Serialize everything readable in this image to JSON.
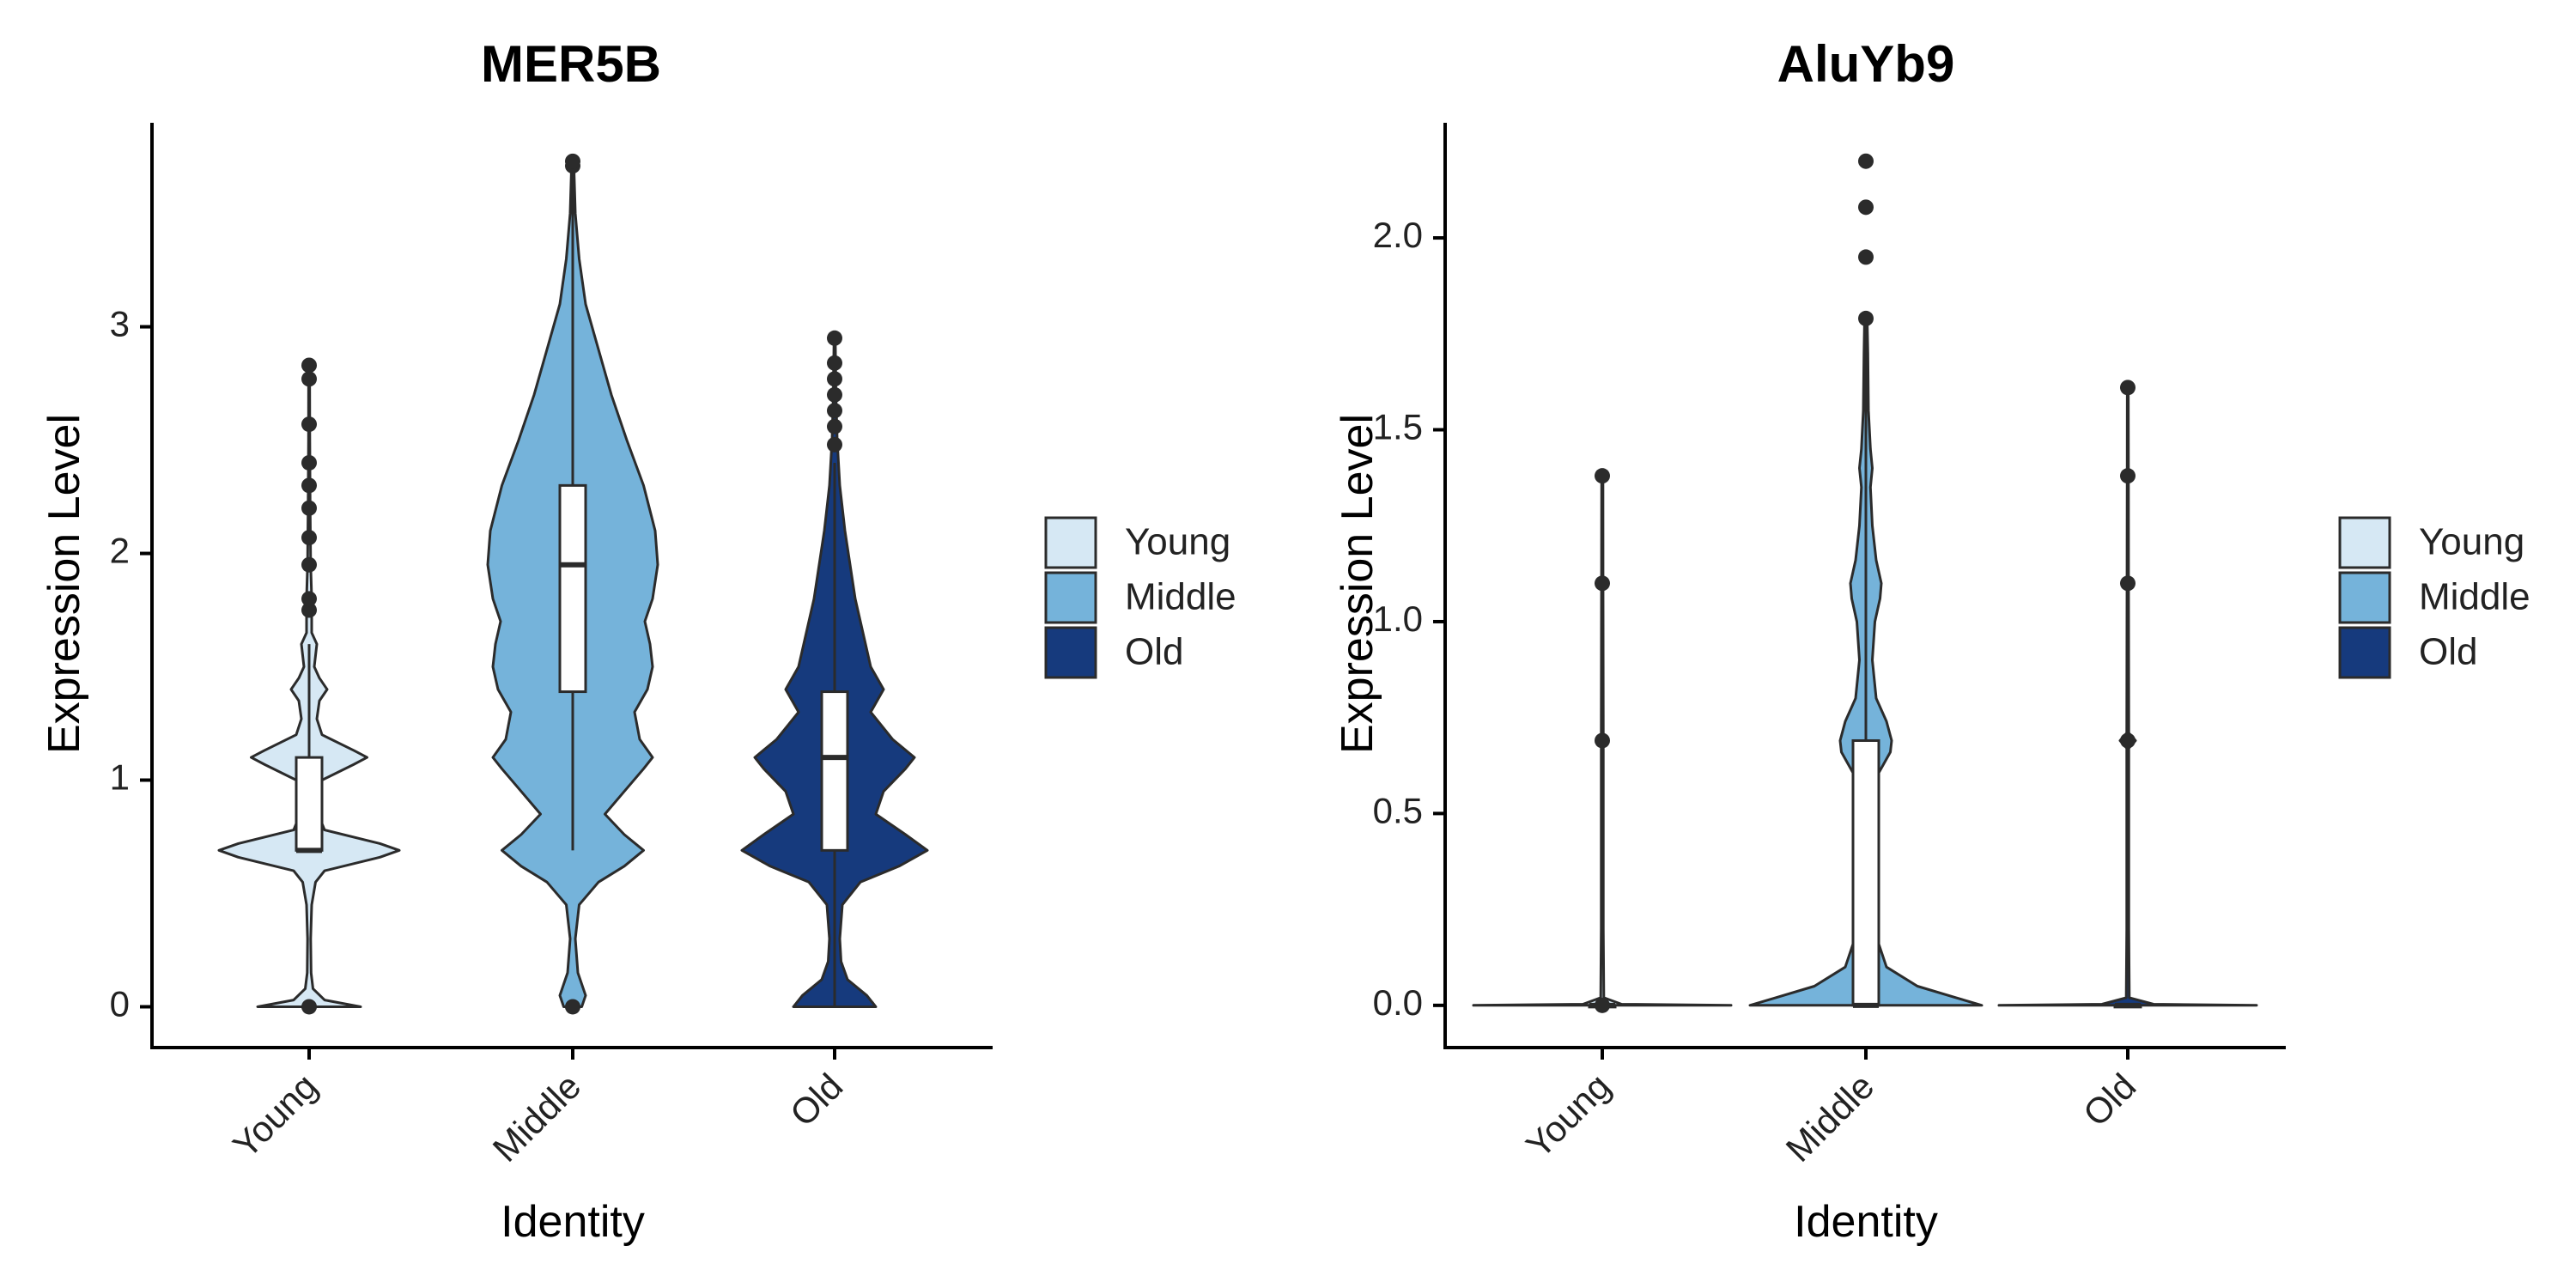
{
  "colors": {
    "Young": "#d6e8f4",
    "Middle": "#75b3da",
    "Old": "#163a7d",
    "outline": "#2b2b2b",
    "box_fill": "#ffffff",
    "axis": "#000000"
  },
  "chart_data": [
    {
      "type": "violin",
      "title": "MER5B",
      "xlabel": "Identity",
      "ylabel": "Expression Level",
      "categories": [
        "Young",
        "Middle",
        "Old"
      ],
      "ylim": [
        -0.18,
        3.9
      ],
      "yticks": [
        0,
        1,
        2,
        3
      ],
      "ytick_labels": [
        "0",
        "1",
        "2",
        "3"
      ],
      "grid": false,
      "legend": {
        "placement": "right",
        "entries": [
          "Young",
          "Middle",
          "Old"
        ]
      },
      "groups": [
        {
          "category": "Young",
          "density": [
            [
              0,
              0.4
            ],
            [
              0.03,
              0.12
            ],
            [
              0.08,
              0.03
            ],
            [
              0.15,
              0.015
            ],
            [
              0.3,
              0.012
            ],
            [
              0.45,
              0.02
            ],
            [
              0.55,
              0.05
            ],
            [
              0.6,
              0.12
            ],
            [
              0.66,
              0.55
            ],
            [
              0.69,
              0.7
            ],
            [
              0.72,
              0.55
            ],
            [
              0.78,
              0.12
            ],
            [
              0.85,
              0.07
            ],
            [
              0.92,
              0.06
            ],
            [
              1.0,
              0.1
            ],
            [
              1.07,
              0.35
            ],
            [
              1.1,
              0.45
            ],
            [
              1.13,
              0.35
            ],
            [
              1.2,
              0.1
            ],
            [
              1.27,
              0.06
            ],
            [
              1.35,
              0.08
            ],
            [
              1.4,
              0.14
            ],
            [
              1.45,
              0.08
            ],
            [
              1.5,
              0.04
            ],
            [
              1.6,
              0.06
            ],
            [
              1.65,
              0.02
            ],
            [
              1.8,
              0.02
            ],
            [
              1.95,
              0.012
            ],
            [
              2.2,
              0.008
            ],
            [
              2.5,
              0.005
            ],
            [
              2.83,
              0.004
            ]
          ],
          "box": {
            "q1": 0.69,
            "median": 0.69,
            "q3": 1.1,
            "whisker_low": 0.69,
            "whisker_high": 1.6
          },
          "outliers": [
            0,
            1.75,
            1.8,
            1.95,
            2.07,
            2.2,
            2.3,
            2.4,
            2.57,
            2.77,
            2.83
          ]
        },
        {
          "category": "Middle",
          "density": [
            [
              0,
              0.07
            ],
            [
              0.05,
              0.1
            ],
            [
              0.15,
              0.04
            ],
            [
              0.3,
              0.02
            ],
            [
              0.45,
              0.05
            ],
            [
              0.55,
              0.2
            ],
            [
              0.62,
              0.4
            ],
            [
              0.69,
              0.55
            ],
            [
              0.76,
              0.4
            ],
            [
              0.85,
              0.25
            ],
            [
              0.95,
              0.4
            ],
            [
              1.05,
              0.55
            ],
            [
              1.1,
              0.62
            ],
            [
              1.18,
              0.52
            ],
            [
              1.3,
              0.48
            ],
            [
              1.4,
              0.58
            ],
            [
              1.5,
              0.62
            ],
            [
              1.6,
              0.6
            ],
            [
              1.7,
              0.56
            ],
            [
              1.8,
              0.62
            ],
            [
              1.95,
              0.66
            ],
            [
              2.1,
              0.64
            ],
            [
              2.3,
              0.55
            ],
            [
              2.5,
              0.42
            ],
            [
              2.7,
              0.3
            ],
            [
              2.9,
              0.2
            ],
            [
              3.1,
              0.1
            ],
            [
              3.3,
              0.05
            ],
            [
              3.5,
              0.02
            ],
            [
              3.73,
              0.008
            ]
          ],
          "box": {
            "q1": 1.39,
            "median": 1.95,
            "q3": 2.3,
            "whisker_low": 0.69,
            "whisker_high": 3.73
          },
          "outliers": [
            0,
            3.71,
            3.73
          ]
        },
        {
          "category": "Old",
          "density": [
            [
              0,
              0.32
            ],
            [
              0.05,
              0.25
            ],
            [
              0.12,
              0.1
            ],
            [
              0.2,
              0.05
            ],
            [
              0.3,
              0.04
            ],
            [
              0.45,
              0.06
            ],
            [
              0.55,
              0.2
            ],
            [
              0.62,
              0.5
            ],
            [
              0.69,
              0.72
            ],
            [
              0.76,
              0.55
            ],
            [
              0.85,
              0.32
            ],
            [
              0.95,
              0.38
            ],
            [
              1.05,
              0.55
            ],
            [
              1.1,
              0.62
            ],
            [
              1.18,
              0.45
            ],
            [
              1.3,
              0.28
            ],
            [
              1.4,
              0.38
            ],
            [
              1.5,
              0.28
            ],
            [
              1.6,
              0.24
            ],
            [
              1.7,
              0.2
            ],
            [
              1.8,
              0.16
            ],
            [
              1.95,
              0.12
            ],
            [
              2.1,
              0.08
            ],
            [
              2.3,
              0.04
            ],
            [
              2.5,
              0.02
            ],
            [
              2.7,
              0.01
            ],
            [
              2.95,
              0.005
            ]
          ],
          "box": {
            "q1": 0.69,
            "median": 1.1,
            "q3": 1.39,
            "whisker_low": 0,
            "whisker_high": 2.4
          },
          "outliers": [
            2.48,
            2.56,
            2.63,
            2.7,
            2.77,
            2.84,
            2.95
          ]
        }
      ]
    },
    {
      "type": "violin",
      "title": "AluYb9",
      "xlabel": "Identity",
      "ylabel": "Expression Level",
      "categories": [
        "Young",
        "Middle",
        "Old"
      ],
      "ylim": [
        -0.11,
        2.3
      ],
      "yticks": [
        0,
        0.5,
        1,
        1.5,
        2
      ],
      "ytick_labels": [
        "0.0",
        "0.5",
        "1.0",
        "1.5",
        "2.0"
      ],
      "grid": false,
      "legend": {
        "placement": "right",
        "entries": [
          "Young",
          "Middle",
          "Old"
        ]
      },
      "groups": [
        {
          "category": "Young",
          "density": [
            [
              0,
              1.0
            ],
            [
              0.003,
              0.15
            ],
            [
              0.02,
              0.012
            ],
            [
              0.2,
              0.008
            ],
            [
              0.68,
              0.008
            ],
            [
              0.69,
              0.012
            ],
            [
              0.71,
              0.008
            ],
            [
              1.1,
              0.006
            ],
            [
              1.38,
              0.005
            ]
          ],
          "box": {
            "q1": 0,
            "median": 0,
            "q3": 0,
            "whisker_low": 0,
            "whisker_high": 0
          },
          "outliers": [
            0,
            0.69,
            1.1,
            1.38
          ]
        },
        {
          "category": "Middle",
          "density": [
            [
              0,
              0.9
            ],
            [
              0.02,
              0.7
            ],
            [
              0.05,
              0.4
            ],
            [
              0.1,
              0.16
            ],
            [
              0.2,
              0.06
            ],
            [
              0.35,
              0.05
            ],
            [
              0.5,
              0.05
            ],
            [
              0.6,
              0.09
            ],
            [
              0.66,
              0.19
            ],
            [
              0.69,
              0.2
            ],
            [
              0.74,
              0.16
            ],
            [
              0.8,
              0.08
            ],
            [
              0.9,
              0.05
            ],
            [
              1.0,
              0.07
            ],
            [
              1.06,
              0.11
            ],
            [
              1.1,
              0.12
            ],
            [
              1.16,
              0.08
            ],
            [
              1.25,
              0.05
            ],
            [
              1.35,
              0.035
            ],
            [
              1.4,
              0.05
            ],
            [
              1.45,
              0.035
            ],
            [
              1.55,
              0.02
            ],
            [
              1.7,
              0.015
            ],
            [
              1.79,
              0.01
            ]
          ],
          "box": {
            "q1": 0,
            "median": 0,
            "q3": 0.69,
            "whisker_low": 0,
            "whisker_high": 1.79
          },
          "outliers": [
            1.79,
            1.95,
            2.08,
            2.2
          ]
        },
        {
          "category": "Old",
          "density": [
            [
              0,
              1.0
            ],
            [
              0.003,
              0.2
            ],
            [
              0.02,
              0.012
            ],
            [
              0.2,
              0.008
            ],
            [
              0.67,
              0.008
            ],
            [
              0.69,
              0.06
            ],
            [
              0.71,
              0.008
            ],
            [
              1.1,
              0.006
            ],
            [
              1.38,
              0.005
            ],
            [
              1.61,
              0.004
            ]
          ],
          "box": {
            "q1": 0,
            "median": 0,
            "q3": 0,
            "whisker_low": 0,
            "whisker_high": 0
          },
          "outliers": [
            0.69,
            1.1,
            1.38,
            1.61
          ]
        }
      ]
    }
  ]
}
